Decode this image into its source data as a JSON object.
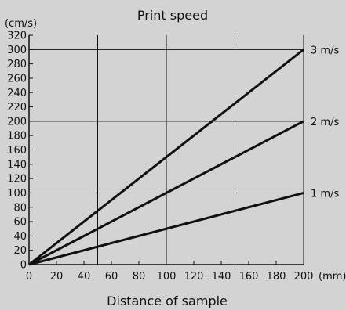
{
  "chart_data": {
    "type": "line",
    "title": "Print speed",
    "xlabel": "Distance of sample",
    "ylabel": "",
    "x_unit": "(mm)",
    "y_unit": "(cm/s)",
    "xlim": [
      0,
      200
    ],
    "ylim": [
      0,
      320
    ],
    "x_ticks": [
      0,
      20,
      40,
      60,
      80,
      100,
      120,
      140,
      160,
      180,
      200
    ],
    "y_ticks": [
      0,
      20,
      40,
      60,
      80,
      100,
      120,
      140,
      160,
      180,
      200,
      220,
      240,
      260,
      280,
      300,
      320
    ],
    "x_grid": [
      50,
      100,
      150,
      200
    ],
    "y_grid": [
      100,
      200,
      300
    ],
    "grid": true,
    "series": [
      {
        "name": "1 m/s",
        "x": [
          0,
          200
        ],
        "y": [
          0,
          100
        ]
      },
      {
        "name": "2 m/s",
        "x": [
          0,
          200
        ],
        "y": [
          0,
          200
        ]
      },
      {
        "name": "3 m/s",
        "x": [
          0,
          200
        ],
        "y": [
          0,
          300
        ]
      }
    ],
    "colors": {
      "background": "#d3d3d3",
      "ink": "#111111"
    }
  }
}
